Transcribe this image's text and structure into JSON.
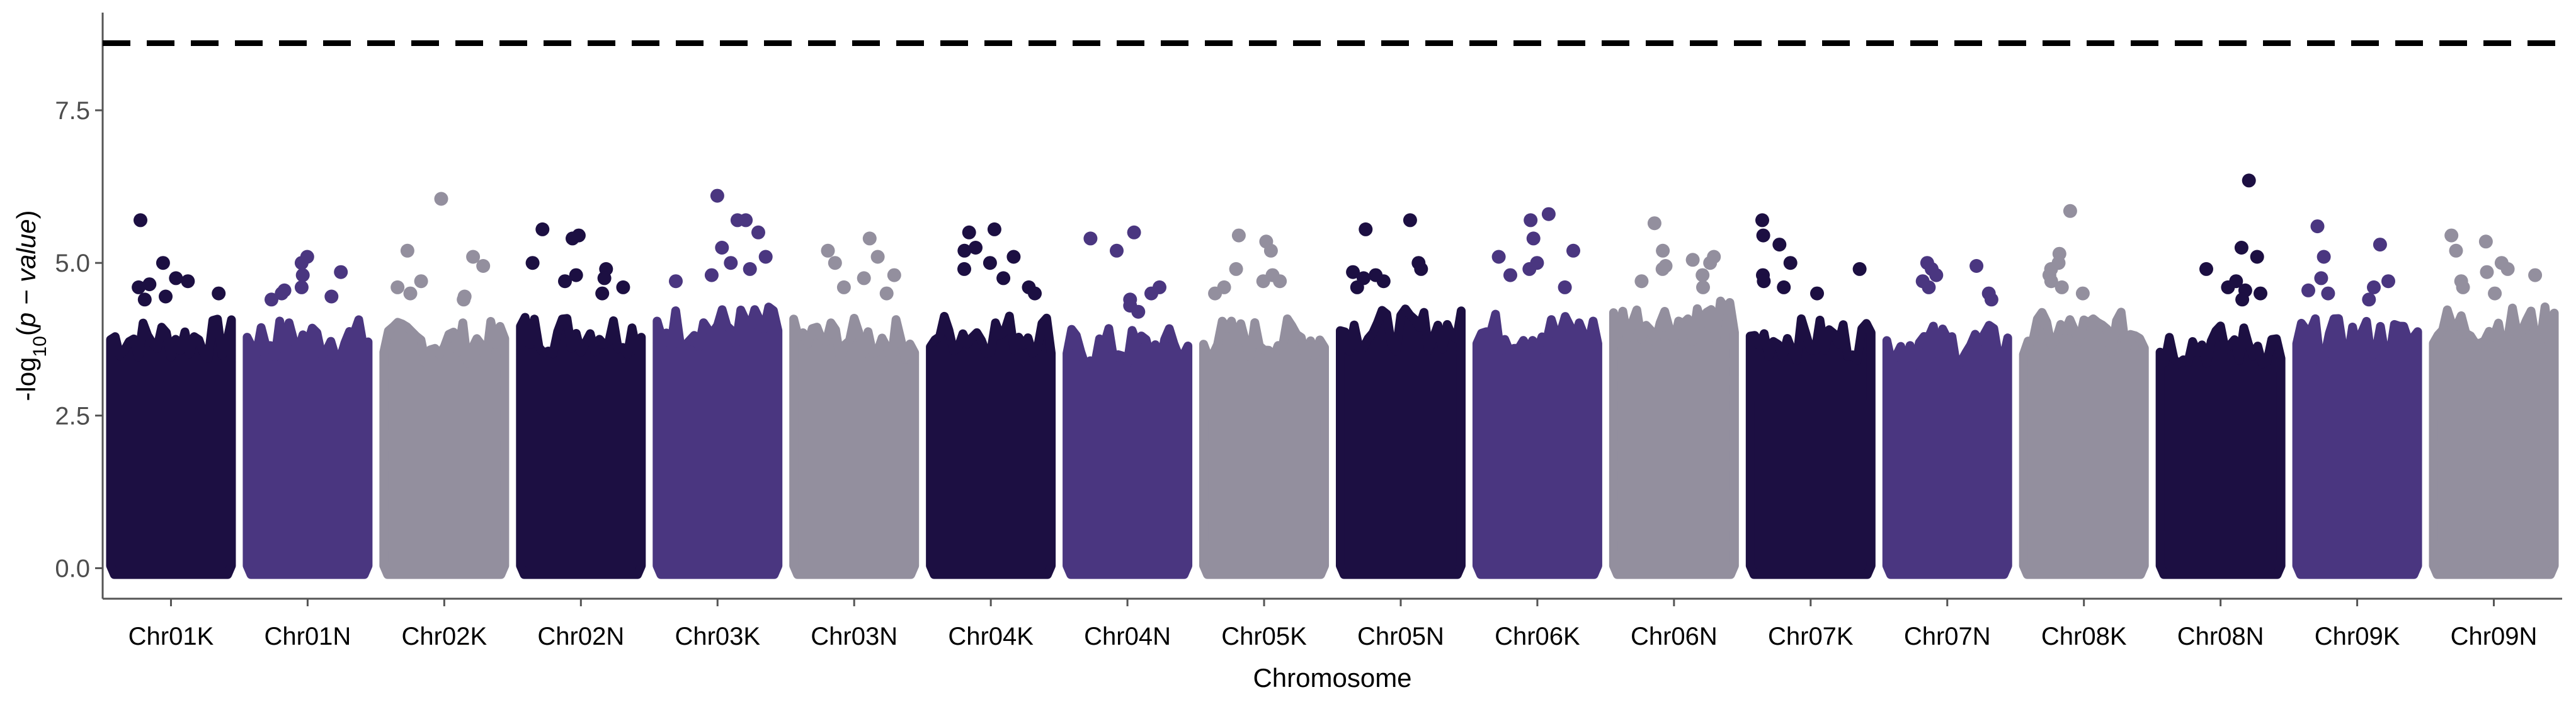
{
  "chart_data": {
    "type": "scatter",
    "title": "",
    "xlabel": "Chromosome",
    "ylabel": "-log10(p − value)",
    "ylabel_parts": {
      "prefix": "-log",
      "subscript": "10",
      "open": "(",
      "variable": "p − value",
      "close": ")"
    },
    "ylim": [
      -0.5,
      9.1
    ],
    "y_ticks": [
      0.0,
      2.5,
      5.0,
      7.5
    ],
    "y_tick_labels": [
      "0.0",
      "2.5",
      "5.0",
      "7.5"
    ],
    "threshold": 8.6,
    "grid": false,
    "legend": "none",
    "palette": [
      "#1c0f42",
      "#4a3680",
      "#938f9e"
    ],
    "threshold_color": "#000000",
    "categories": [
      "Chr01K",
      "Chr01N",
      "Chr02K",
      "Chr02N",
      "Chr03K",
      "Chr03N",
      "Chr04K",
      "Chr04N",
      "Chr05K",
      "Chr05N",
      "Chr06K",
      "Chr06N",
      "Chr07K",
      "Chr07N",
      "Chr08K",
      "Chr08N",
      "Chr09K",
      "Chr09N"
    ],
    "series": [
      {
        "category": "Chr01K",
        "color_index": 0,
        "dense_max": 3.9,
        "peaks": [
          5.7,
          5.0,
          4.75,
          4.7,
          4.65,
          4.6,
          4.5,
          4.45,
          4.4
        ]
      },
      {
        "category": "Chr01N",
        "color_index": 1,
        "dense_max": 3.9,
        "peaks": [
          5.1,
          5.0,
          4.85,
          4.8,
          4.6,
          4.55,
          4.5,
          4.45,
          4.4
        ]
      },
      {
        "category": "Chr02K",
        "color_index": 2,
        "dense_max": 3.85,
        "peaks": [
          6.05,
          5.2,
          5.1,
          4.95,
          4.7,
          4.6,
          4.5,
          4.45,
          4.4
        ]
      },
      {
        "category": "Chr02N",
        "color_index": 0,
        "dense_max": 4.0,
        "peaks": [
          5.55,
          5.45,
          5.4,
          5.0,
          4.9,
          4.8,
          4.75,
          4.7,
          4.6,
          4.5
        ]
      },
      {
        "category": "Chr03K",
        "color_index": 1,
        "dense_max": 4.1,
        "peaks": [
          6.1,
          5.7,
          5.7,
          5.5,
          5.25,
          5.1,
          5.0,
          4.9,
          4.8,
          4.7
        ]
      },
      {
        "category": "Chr03N",
        "color_index": 2,
        "dense_max": 3.9,
        "peaks": [
          5.4,
          5.2,
          5.1,
          5.0,
          4.8,
          4.75,
          4.6,
          4.5
        ]
      },
      {
        "category": "Chr04K",
        "color_index": 0,
        "dense_max": 4.0,
        "peaks": [
          5.55,
          5.5,
          5.25,
          5.2,
          5.1,
          5.0,
          4.9,
          4.75,
          4.6,
          4.5
        ]
      },
      {
        "category": "Chr04N",
        "color_index": 1,
        "dense_max": 3.75,
        "peaks": [
          5.5,
          5.4,
          5.2,
          4.6,
          4.5,
          4.4,
          4.3,
          4.2
        ]
      },
      {
        "category": "Chr05K",
        "color_index": 2,
        "dense_max": 3.9,
        "peaks": [
          5.45,
          5.35,
          5.2,
          4.9,
          4.8,
          4.7,
          4.7,
          4.6,
          4.5
        ]
      },
      {
        "category": "Chr05N",
        "color_index": 0,
        "dense_max": 4.05,
        "peaks": [
          5.7,
          5.55,
          5.0,
          4.9,
          4.85,
          4.8,
          4.75,
          4.7,
          4.6
        ]
      },
      {
        "category": "Chr06K",
        "color_index": 1,
        "dense_max": 4.0,
        "peaks": [
          5.8,
          5.7,
          5.4,
          5.2,
          5.1,
          5.0,
          4.9,
          4.8,
          4.6
        ]
      },
      {
        "category": "Chr06N",
        "color_index": 2,
        "dense_max": 4.2,
        "peaks": [
          5.65,
          5.2,
          5.1,
          5.05,
          5.0,
          4.95,
          4.9,
          4.8,
          4.7,
          4.6
        ]
      },
      {
        "category": "Chr07K",
        "color_index": 0,
        "dense_max": 3.9,
        "peaks": [
          5.7,
          5.45,
          5.3,
          5.0,
          4.9,
          4.8,
          4.7,
          4.6,
          4.5
        ]
      },
      {
        "category": "Chr07N",
        "color_index": 1,
        "dense_max": 3.8,
        "peaks": [
          5.0,
          4.95,
          4.9,
          4.8,
          4.7,
          4.6,
          4.5,
          4.4
        ]
      },
      {
        "category": "Chr08K",
        "color_index": 2,
        "dense_max": 4.0,
        "peaks": [
          5.85,
          5.15,
          5.0,
          4.9,
          4.8,
          4.7,
          4.6,
          4.5
        ]
      },
      {
        "category": "Chr08N",
        "color_index": 0,
        "dense_max": 3.8,
        "peaks": [
          6.35,
          5.25,
          5.1,
          4.9,
          4.7,
          4.6,
          4.55,
          4.5,
          4.4
        ]
      },
      {
        "category": "Chr09K",
        "color_index": 1,
        "dense_max": 3.9,
        "peaks": [
          5.6,
          5.3,
          5.1,
          4.75,
          4.7,
          4.6,
          4.55,
          4.5,
          4.4
        ]
      },
      {
        "category": "Chr09N",
        "color_index": 2,
        "dense_max": 4.1,
        "peaks": [
          5.45,
          5.35,
          5.2,
          5.0,
          4.9,
          4.85,
          4.8,
          4.7,
          4.6,
          4.5
        ]
      }
    ]
  }
}
